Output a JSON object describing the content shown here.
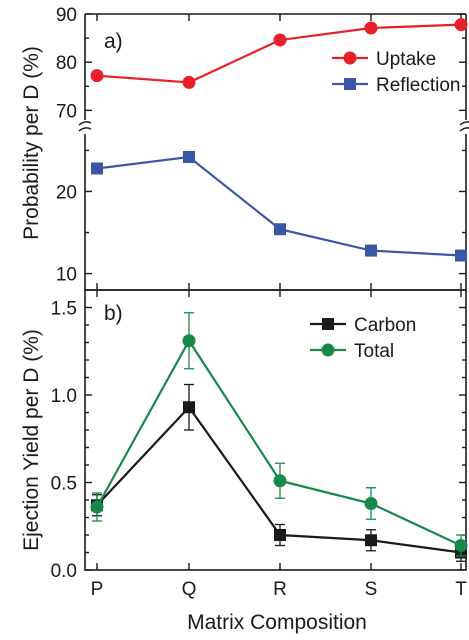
{
  "chart_data": [
    {
      "panel_label": "a)",
      "type": "line",
      "categories": [
        "P",
        "Q",
        "R",
        "S",
        "T"
      ],
      "ylabel": "Probability per D (%)",
      "axis_break": true,
      "ylim_upper": [
        68,
        90
      ],
      "ylim_lower": [
        8,
        27
      ],
      "yticks_upper": [
        "70",
        "80",
        "90"
      ],
      "yticks_lower": [
        "10",
        "20"
      ],
      "legend_position": "top-right",
      "series": [
        {
          "name": "Uptake",
          "color": "#e8202a",
          "marker": "circle",
          "values": [
            77.2,
            75.8,
            84.6,
            87.1,
            87.8
          ]
        },
        {
          "name": "Reflection",
          "color": "#3a56a6",
          "marker": "square",
          "values": [
            22.8,
            24.2,
            15.4,
            12.8,
            12.2
          ]
        }
      ]
    },
    {
      "panel_label": "b)",
      "type": "line",
      "categories": [
        "P",
        "Q",
        "R",
        "S",
        "T"
      ],
      "xlabel": "Matrix Composition",
      "ylabel": "Ejection Yield per D (%)",
      "ylim": [
        0,
        1.6
      ],
      "yticks": [
        "0.0",
        "0.5",
        "1.0",
        "1.5"
      ],
      "legend_position": "top-right",
      "series": [
        {
          "name": "Carbon",
          "color": "#1a1a1a",
          "marker": "square",
          "values": [
            0.37,
            0.93,
            0.2,
            0.17,
            0.1
          ],
          "errors": [
            0.06,
            0.13,
            0.06,
            0.06,
            0.05
          ]
        },
        {
          "name": "Total",
          "color": "#16894a",
          "marker": "circle",
          "values": [
            0.36,
            1.31,
            0.51,
            0.38,
            0.14
          ],
          "errors": [
            0.08,
            0.16,
            0.1,
            0.09,
            0.06
          ]
        }
      ]
    }
  ]
}
